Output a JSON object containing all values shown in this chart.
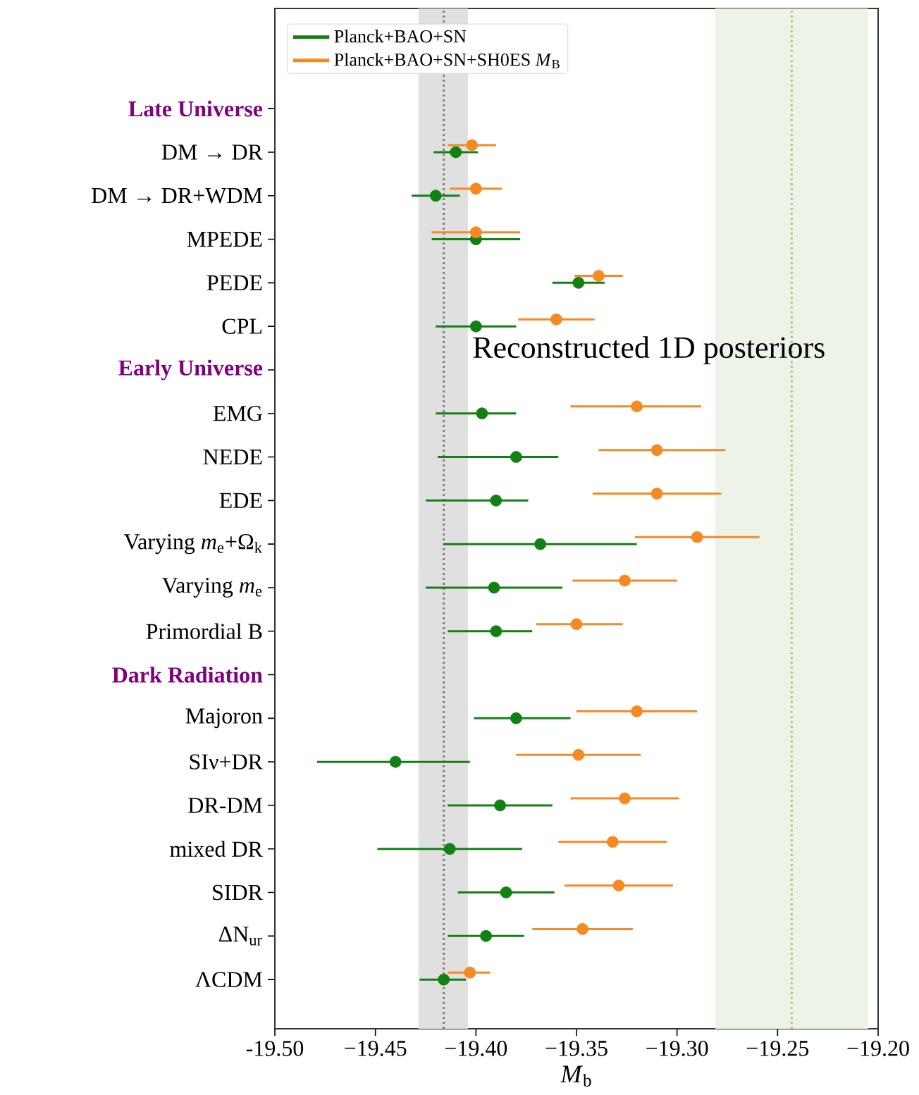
{
  "chart_data": {
    "type": "scatter",
    "orientation": "horizontal",
    "xlabel": "*M*$_{b}$",
    "categories": [
      "Late Universe",
      "DM → DR",
      "DM → DR+WDM",
      "MPEDE",
      "PEDE",
      "CPL",
      "Early Universe",
      "EMG",
      "NEDE",
      "EDE",
      "Varying *m*$_{e}$+Ω$_{k}$",
      "Varying *m*$_{e}$",
      "Primordial B",
      "Dark Radiation",
      "Majoron",
      "SIν+DR",
      "DR-DM",
      "mixed DR",
      "SIDR",
      "ΔN$_{ur}$",
      "ΛCDM"
    ],
    "series": [
      {
        "name": "Planck+BAO+SN",
        "color": "#138013",
        "values": [
          null,
          -19.41,
          -19.42,
          -19.4,
          -19.349,
          -19.4,
          null,
          -19.397,
          -19.38,
          -19.39,
          -19.368,
          -19.391,
          -19.39,
          null,
          -19.38,
          -19.44,
          -19.388,
          -19.413,
          -19.385,
          -19.395,
          -19.416
        ],
        "errors": [
          null,
          [
            -19.421,
            -19.399
          ],
          [
            -19.432,
            -19.408
          ],
          [
            -19.422,
            -19.378
          ],
          [
            -19.362,
            -19.336
          ],
          [
            -19.42,
            -19.38
          ],
          null,
          [
            -19.42,
            -19.38
          ],
          [
            -19.419,
            -19.359
          ],
          [
            -19.425,
            -19.374
          ],
          [
            -19.416,
            -19.32
          ],
          [
            -19.425,
            -19.357
          ],
          [
            -19.414,
            -19.372
          ],
          null,
          [
            -19.401,
            -19.353
          ],
          [
            -19.479,
            -19.403
          ],
          [
            -19.414,
            -19.362
          ],
          [
            -19.449,
            -19.377
          ],
          [
            -19.409,
            -19.361
          ],
          [
            -19.414,
            -19.376
          ],
          [
            -19.428,
            -19.405
          ]
        ]
      },
      {
        "name": "Planck+BAO+SN+SH0ES *M*$_{B}$",
        "color": "#f58a24",
        "values": [
          null,
          -19.402,
          -19.4,
          -19.4,
          -19.339,
          -19.36,
          null,
          -19.32,
          -19.31,
          -19.31,
          -19.29,
          -19.326,
          -19.35,
          null,
          -19.32,
          -19.349,
          -19.326,
          -19.332,
          -19.329,
          -19.347,
          -19.403
        ],
        "errors": [
          null,
          [
            -19.414,
            -19.39
          ],
          [
            -19.413,
            -19.387
          ],
          [
            -19.422,
            -19.378
          ],
          [
            -19.351,
            -19.327
          ],
          [
            -19.379,
            -19.341
          ],
          null,
          [
            -19.353,
            -19.288
          ],
          [
            -19.339,
            -19.276
          ],
          [
            -19.342,
            -19.278
          ],
          [
            -19.321,
            -19.259
          ],
          [
            -19.352,
            -19.3
          ],
          [
            -19.37,
            -19.327
          ],
          null,
          [
            -19.35,
            -19.29
          ],
          [
            -19.38,
            -19.318
          ],
          [
            -19.353,
            -19.299
          ],
          [
            -19.359,
            -19.305
          ],
          [
            -19.356,
            -19.302
          ],
          [
            -19.372,
            -19.322
          ],
          [
            -19.414,
            -19.393
          ]
        ]
      }
    ],
    "xlim": [
      -19.5,
      -19.2
    ],
    "xticks": [
      {
        "value": -19.5,
        "label": "-19.50"
      },
      {
        "value": -19.45,
        "label": "−19.45"
      },
      {
        "value": -19.4,
        "label": "−19.40"
      },
      {
        "value": -19.35,
        "label": "−19.35"
      },
      {
        "value": -19.3,
        "label": "−19.30"
      },
      {
        "value": -19.25,
        "label": "−19.25"
      },
      {
        "value": -19.2,
        "label": "−19.20"
      }
    ],
    "bands": [
      {
        "axis": "x",
        "from": -19.4286,
        "to": -19.404,
        "color": "#e0e0e0"
      },
      {
        "axis": "x",
        "from": -19.281,
        "to": -19.205,
        "color": "#edf3e6"
      }
    ],
    "ref_lines": [
      {
        "axis": "x",
        "value": -19.416,
        "color": "#808080",
        "line_style": "dotted"
      },
      {
        "axis": "x",
        "value": -19.243,
        "color": "#9ed07a",
        "line_style": "dotted"
      }
    ],
    "annotations": [
      "Reconstructed 1D posteriors"
    ],
    "marker": "circle",
    "legend": "top left",
    "grid": false
  }
}
